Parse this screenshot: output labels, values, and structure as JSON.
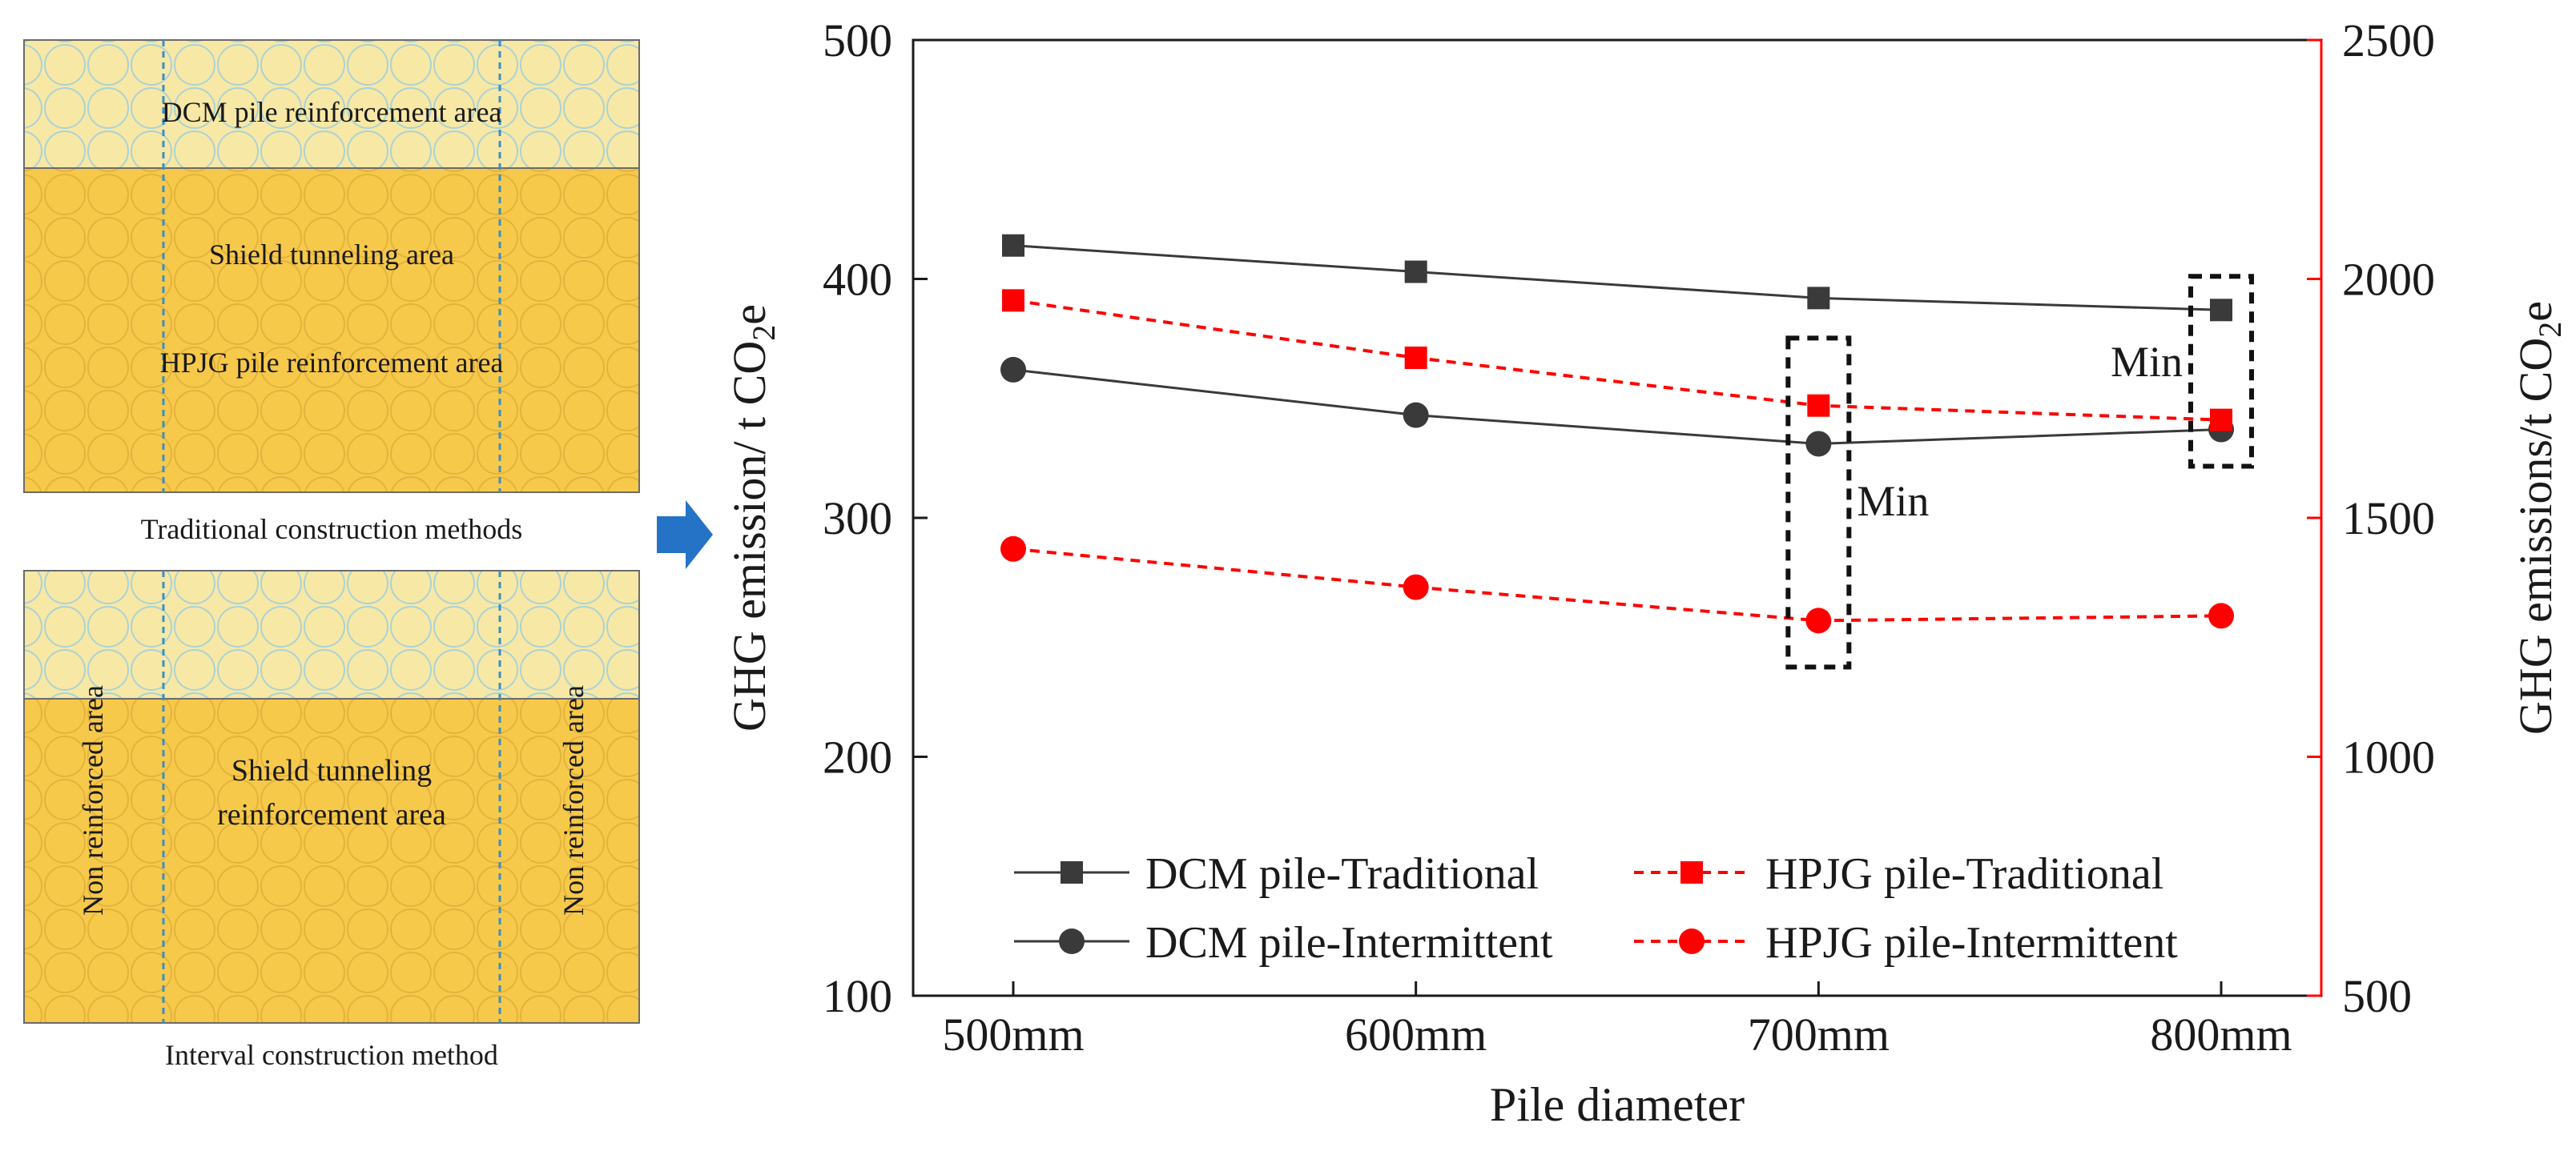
{
  "panels": {
    "traditional": {
      "caption": "Traditional construction methods",
      "top_label": "DCM pile reinforcement area",
      "mid_label": "Shield tunneling area",
      "bottom_label": "HPJG pile reinforcement area"
    },
    "interval": {
      "caption": "Interval construction method",
      "center_label_1": "Shield tunneling",
      "center_label_2": "reinforcement area",
      "side_label_left": "Non reinforced area",
      "side_label_right": "Non reinforced area"
    }
  },
  "colors": {
    "fill_dark": "#f7c94a",
    "fill_light": "#f8e8a6",
    "circle_light": "#a9d3d6",
    "circle_dark": "#e3b33c",
    "divider": "#3a8fc4",
    "arrow": "#2473c6",
    "black_series": "#3a3a3a",
    "red_series": "#ff0000",
    "right_axis": "#ff0000"
  },
  "chart_data": {
    "type": "line",
    "categories": [
      "500mm",
      "600mm",
      "700mm",
      "800mm"
    ],
    "xlabel": "Pile diameter",
    "ylabel_left_main": "GHG emission/ t CO",
    "ylabel_left_sub": "2",
    "ylabel_left_tail": "e",
    "ylabel_right_main": "GHG emissions/t CO",
    "ylabel_right_sub": "2",
    "ylabel_right_tail": "e",
    "ylim_left": [
      100,
      500
    ],
    "ylim_right": [
      500,
      2500
    ],
    "yticks_left": [
      100,
      200,
      300,
      400,
      500
    ],
    "yticks_right": [
      500,
      1000,
      1500,
      2000,
      2500
    ],
    "series": [
      {
        "name": "DCM pile-Traditional",
        "axis": "left",
        "marker": "square",
        "color": "#3a3a3a",
        "dash": false,
        "values": [
          414,
          403,
          392,
          387
        ]
      },
      {
        "name": "DCM pile-Intermittent",
        "axis": "left",
        "marker": "circle",
        "color": "#3a3a3a",
        "dash": false,
        "values": [
          362,
          343,
          331,
          337
        ]
      },
      {
        "name": "HPJG pile-Traditional",
        "axis": "right",
        "marker": "square",
        "color": "#ff0000",
        "dash": true,
        "values": [
          1955,
          1835,
          1735,
          1705
        ]
      },
      {
        "name": "HPJG pile-Intermittent",
        "axis": "right",
        "marker": "circle",
        "color": "#ff0000",
        "dash": true,
        "values": [
          1435,
          1355,
          1285,
          1295
        ]
      }
    ],
    "annotations": [
      {
        "text": "Min",
        "category": "700mm"
      },
      {
        "text": "Min",
        "category": "800mm"
      }
    ]
  }
}
